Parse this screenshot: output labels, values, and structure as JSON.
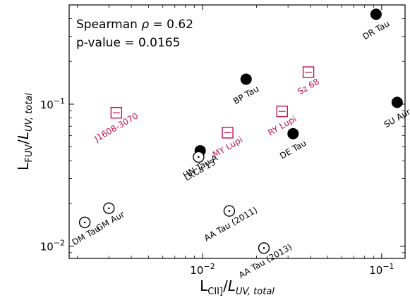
{
  "chart_data": {
    "type": "scatter",
    "xscale": "log",
    "yscale": "log",
    "xlim": [
      0.0018,
      0.135
    ],
    "ylim": [
      0.0082,
      0.5
    ],
    "xlabel": {
      "main": "L",
      "sub1": "CII]",
      "mid": "/",
      "it": "L",
      "sub2": "UV, total"
    },
    "ylabel": {
      "main": "L",
      "sub1": "FUV",
      "mid": "/",
      "it": "L",
      "sub2": "UV, total"
    },
    "xticks": [
      {
        "value": 0.01,
        "base": "10",
        "exp": "−2"
      },
      {
        "value": 0.1,
        "base": "10",
        "exp": "−1"
      }
    ],
    "yticks": [
      {
        "value": 0.01,
        "base": "10",
        "exp": "−2"
      },
      {
        "value": 0.1,
        "base": "10",
        "exp": "−1"
      }
    ],
    "annotations": {
      "line1_prefix": "Spearman ",
      "rho": "ρ",
      "line1_value": " =  0.62",
      "line2": "p-value = 0.0165"
    },
    "colors": {
      "crimson": "#c0144b",
      "black": "#000000"
    },
    "series": [
      {
        "marker": "filled-circle",
        "points": [
          {
            "name": "DR Tau",
            "x": 0.093,
            "y": 0.43,
            "color": "#000000",
            "rot": -30
          },
          {
            "name": "BP Tau",
            "x": 0.0175,
            "y": 0.15,
            "color": "#000000",
            "rot": -30
          },
          {
            "name": "SU Aur",
            "x": 0.122,
            "y": 0.103,
            "color": "#000000",
            "rot": -30
          },
          {
            "name": "DE Tau",
            "x": 0.032,
            "y": 0.062,
            "color": "#000000",
            "rot": -30
          },
          {
            "name": "HN Tau A",
            "x": 0.0097,
            "y": 0.047,
            "color": "#000000",
            "rot": -30
          }
        ]
      },
      {
        "marker": "dotted-circle",
        "points": [
          {
            "name": "LkCa 15",
            "x": 0.0095,
            "y": 0.0425,
            "color": "#000000",
            "rot": -30
          },
          {
            "name": "GM Aur",
            "x": 0.003,
            "y": 0.0185,
            "color": "#000000",
            "rot": -30
          },
          {
            "name": "DM Tau",
            "x": 0.0022,
            "y": 0.0147,
            "color": "#000000",
            "rot": -30
          },
          {
            "name": "AA Tau (2011)",
            "x": 0.0141,
            "y": 0.0177,
            "color": "#000000",
            "rot": -30
          },
          {
            "name": "AA Tau (2013)",
            "x": 0.022,
            "y": 0.0097,
            "color": "#000000",
            "rot": -30
          }
        ]
      },
      {
        "marker": "dotted-square",
        "points": [
          {
            "name": "J1608-3070",
            "x": 0.0033,
            "y": 0.087,
            "color": "#c0144b",
            "rot": -30
          },
          {
            "name": "MY Lupi",
            "x": 0.0138,
            "y": 0.063,
            "color": "#c0144b",
            "rot": -30
          },
          {
            "name": "RY Lupi",
            "x": 0.0278,
            "y": 0.089,
            "color": "#c0144b",
            "rot": -30
          },
          {
            "name": "Sz 68",
            "x": 0.039,
            "y": 0.168,
            "color": "#c0144b",
            "rot": -30
          }
        ]
      }
    ]
  }
}
